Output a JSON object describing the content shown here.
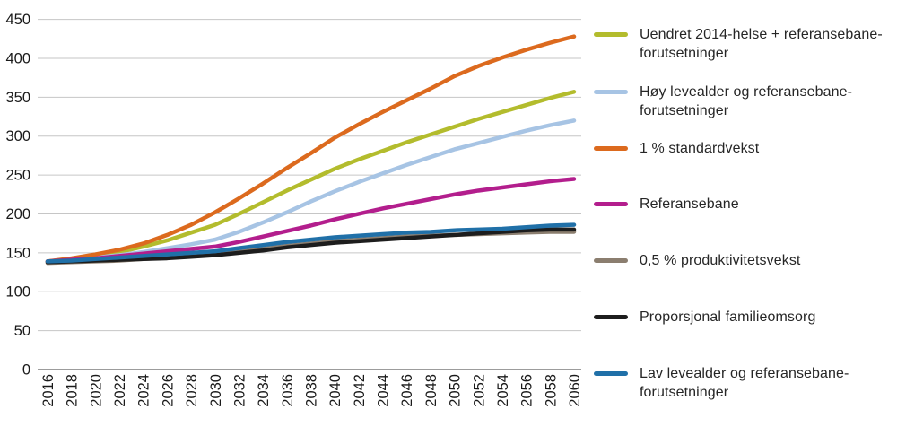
{
  "chart_data": {
    "type": "line",
    "title": "",
    "xlabel": "",
    "ylabel": "",
    "x": [
      2016,
      2018,
      2020,
      2022,
      2024,
      2026,
      2028,
      2030,
      2032,
      2034,
      2036,
      2038,
      2040,
      2042,
      2044,
      2046,
      2048,
      2050,
      2052,
      2054,
      2056,
      2058,
      2060
    ],
    "x_tick_labels": [
      "2016",
      "2018",
      "2020",
      "2022",
      "2024",
      "2026",
      "2028",
      "2030",
      "2032",
      "2034",
      "2036",
      "2038",
      "2040",
      "2042",
      "2044",
      "2046",
      "2048",
      "2050",
      "2052",
      "2054",
      "2056",
      "2058",
      "2060"
    ],
    "y_ticks": [
      0,
      50,
      100,
      150,
      200,
      250,
      300,
      350,
      400,
      450
    ],
    "y_tick_labels": [
      "0",
      "50",
      "100",
      "150",
      "200",
      "250",
      "300",
      "350",
      "400",
      "450"
    ],
    "ylim": [
      0,
      450
    ],
    "grid": true,
    "legend_position": "right",
    "grid_color": "#c6c6c6",
    "axis_color": "#9c9c9c",
    "text_color": "#1a1a1a",
    "series": [
      {
        "name": "Uendret 2014-helse + referansebane-forutsetninger",
        "color": "#b3bc2d",
        "values": [
          139,
          142,
          146,
          151,
          158,
          166,
          176,
          186,
          200,
          215,
          230,
          244,
          258,
          270,
          281,
          292,
          302,
          312,
          322,
          331,
          340,
          349,
          357
        ]
      },
      {
        "name": "Høy levealder og referansebane-forutsetninger",
        "color": "#a7c4e4",
        "values": [
          139,
          141,
          144,
          147,
          151,
          156,
          161,
          167,
          177,
          189,
          202,
          216,
          229,
          241,
          252,
          263,
          273,
          283,
          291,
          299,
          307,
          314,
          320
        ]
      },
      {
        "name": "1 % standardvekst",
        "color": "#dc6a1e",
        "values": [
          139,
          143,
          148,
          154,
          162,
          173,
          186,
          202,
          220,
          239,
          259,
          278,
          298,
          315,
          331,
          346,
          361,
          377,
          390,
          401,
          411,
          420,
          428
        ]
      },
      {
        "name": "Referansebane",
        "color": "#b31e8d",
        "values": [
          139,
          141,
          143,
          146,
          149,
          152,
          155,
          158,
          164,
          171,
          178,
          185,
          193,
          200,
          207,
          213,
          219,
          225,
          230,
          234,
          238,
          242,
          245
        ]
      },
      {
        "name": "0,5 % produktivitetsvekst",
        "color": "#8b7e6f",
        "values": [
          137,
          138,
          139,
          140,
          142,
          144,
          146,
          148,
          151,
          155,
          159,
          162,
          165,
          167,
          169,
          171,
          172,
          173,
          174,
          175,
          176,
          177,
          177
        ]
      },
      {
        "name": "Proporsjonal familieomsorg",
        "color": "#1d1d1d",
        "values": [
          138,
          139,
          140,
          141,
          142,
          143,
          145,
          147,
          150,
          153,
          157,
          160,
          163,
          165,
          167,
          169,
          171,
          173,
          175,
          177,
          179,
          180,
          180
        ]
      },
      {
        "name": "Lav levealder og referansebane-forutsetninger",
        "color": "#2070a8",
        "values": [
          139,
          140,
          142,
          144,
          146,
          148,
          150,
          152,
          156,
          160,
          164,
          167,
          170,
          172,
          174,
          176,
          177,
          179,
          180,
          181,
          183,
          185,
          186
        ]
      }
    ]
  }
}
